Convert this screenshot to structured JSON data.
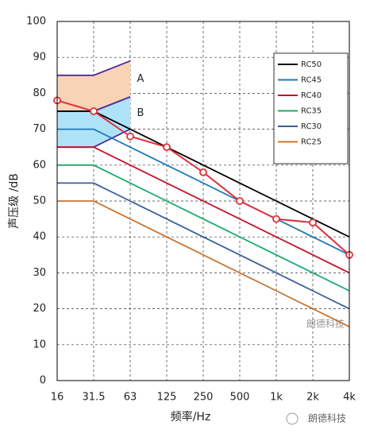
{
  "chart_data": {
    "type": "line",
    "x_label": "频率/Hz",
    "y_label": "声压级 /dB",
    "categories": [
      "16",
      "31.5",
      "63",
      "125",
      "250",
      "500",
      "1k",
      "2k",
      "4k"
    ],
    "ylim": [
      0,
      100
    ],
    "yticks": [
      0,
      10,
      20,
      30,
      40,
      50,
      60,
      70,
      80,
      90,
      100
    ],
    "grid": true,
    "legend": "top-right",
    "series": [
      {
        "name": "RC50",
        "color": "#000000",
        "values": [
          75,
          75,
          70,
          65,
          60,
          55,
          50,
          45,
          40
        ]
      },
      {
        "name": "RC45",
        "color": "#1f78b4",
        "values": [
          70,
          70,
          65,
          60,
          55,
          50,
          45,
          40,
          35
        ]
      },
      {
        "name": "RC40",
        "color": "#c0142b",
        "values": [
          65,
          65,
          60,
          55,
          50,
          45,
          40,
          35,
          30
        ]
      },
      {
        "name": "RC35",
        "color": "#1aab6b",
        "values": [
          60,
          60,
          55,
          50,
          45,
          40,
          35,
          30,
          25
        ]
      },
      {
        "name": "RC30",
        "color": "#3a5f9a",
        "values": [
          55,
          55,
          50,
          45,
          40,
          35,
          30,
          25,
          20
        ]
      },
      {
        "name": "RC25",
        "color": "#c87534",
        "values": [
          50,
          50,
          45,
          40,
          35,
          30,
          25,
          20,
          15
        ]
      }
    ],
    "measured": {
      "color": "#e0303a",
      "values": [
        78,
        75,
        68,
        65,
        58,
        50,
        45,
        44,
        35
      ]
    },
    "boundary_color": "#4b2c9c",
    "regions": [
      {
        "label": "A",
        "color": "#f9d3b5",
        "upper": [
          85,
          85,
          89
        ],
        "lower": [
          75,
          75,
          79
        ]
      },
      {
        "label": "B",
        "color": "#aee3f7",
        "upper": [
          75,
          75,
          79
        ],
        "lower": [
          65,
          65,
          70
        ]
      }
    ],
    "watermark": "朗德科技",
    "footer": "朗德科技"
  }
}
